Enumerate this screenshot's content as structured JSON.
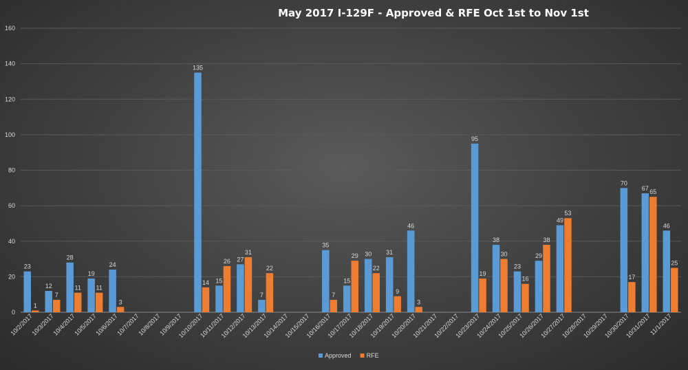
{
  "chart_data": {
    "type": "bar",
    "title": "May 2017 I-129F - Approved  & RFE Oct 1st to Nov 1st",
    "xlabel": "",
    "ylabel": "",
    "ylim": [
      0,
      160
    ],
    "yticks": [
      0,
      20,
      40,
      60,
      80,
      100,
      120,
      140,
      160
    ],
    "grid": true,
    "legend_position": "bottom",
    "categories": [
      "10/2/2017",
      "10/3/2017",
      "10/4/2017",
      "10/5/2017",
      "10/6/2017",
      "10/7/2017",
      "10/8/2017",
      "10/9/2017",
      "10/10/2017",
      "10/11/2017",
      "10/12/2017",
      "10/13/2017",
      "10/14/2017",
      "10/15/2017",
      "10/16/2017",
      "10/17/2017",
      "10/18/2017",
      "10/19/2017",
      "10/20/2017",
      "10/21/2017",
      "10/22/2017",
      "10/23/2017",
      "10/24/2017",
      "10/25/2017",
      "10/26/2017",
      "10/27/2017",
      "10/28/2017",
      "10/29/2017",
      "10/30/2017",
      "10/31/2017",
      "11/1/2017"
    ],
    "series": [
      {
        "name": "Approved",
        "color": "#5b9bd5",
        "values": [
          23,
          12,
          28,
          19,
          24,
          null,
          null,
          null,
          135,
          15,
          27,
          7,
          null,
          null,
          35,
          15,
          30,
          31,
          46,
          null,
          null,
          95,
          38,
          23,
          29,
          49,
          null,
          null,
          70,
          67,
          46
        ]
      },
      {
        "name": "RFE",
        "color": "#ed7d31",
        "values": [
          1,
          7,
          11,
          11,
          3,
          null,
          null,
          null,
          14,
          26,
          31,
          22,
          null,
          null,
          7,
          29,
          22,
          9,
          3,
          null,
          null,
          19,
          30,
          16,
          38,
          53,
          null,
          null,
          17,
          65,
          25
        ]
      }
    ]
  }
}
